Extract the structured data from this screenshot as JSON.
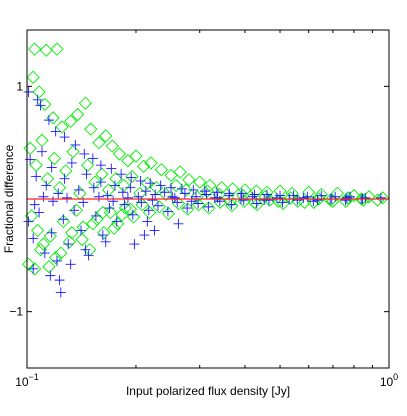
{
  "chart_data": {
    "type": "scatter",
    "xlabel": "Input polarized flux density [Jy]",
    "ylabel": "Fractional difference",
    "x_scale": "log",
    "xlim": [
      0.1,
      1.0
    ],
    "ylim": [
      -1.5,
      1.5
    ],
    "x_ticks": [
      {
        "value": 0.1,
        "base": "10",
        "exp": "−1"
      },
      {
        "value": 1.0,
        "base": "10",
        "exp": "0"
      }
    ],
    "y_ticks": [
      {
        "value": -1,
        "label": "−1"
      },
      {
        "value": 1,
        "label": "1"
      }
    ],
    "grid": false,
    "colors": {
      "diamond": "#00ee00",
      "plus": "#1a1aff",
      "fit": "#ff2020"
    },
    "reference_line": {
      "y": 0.0,
      "color": "#ff2020"
    },
    "series": [
      {
        "marker": "diamond",
        "color": "#00ee00",
        "points": [
          [
            0.105,
            1.33
          ],
          [
            0.113,
            1.32
          ],
          [
            0.121,
            1.33
          ],
          [
            0.104,
            1.08
          ],
          [
            0.108,
            0.95
          ],
          [
            0.112,
            0.84
          ],
          [
            0.118,
            0.72
          ],
          [
            0.125,
            0.64
          ],
          [
            0.132,
            0.69
          ],
          [
            0.138,
            0.75
          ],
          [
            0.145,
            0.85
          ],
          [
            0.15,
            0.62
          ],
          [
            0.158,
            0.5
          ],
          [
            0.165,
            0.56
          ],
          [
            0.172,
            0.47
          ],
          [
            0.18,
            0.4
          ],
          [
            0.19,
            0.34
          ],
          [
            0.2,
            0.38
          ],
          [
            0.21,
            0.29
          ],
          [
            0.22,
            0.32
          ],
          [
            0.235,
            0.26
          ],
          [
            0.25,
            0.21
          ],
          [
            0.265,
            0.24
          ],
          [
            0.28,
            0.17
          ],
          [
            0.3,
            0.15
          ],
          [
            0.32,
            0.12
          ],
          [
            0.345,
            0.1
          ],
          [
            0.37,
            0.09
          ],
          [
            0.4,
            0.08
          ],
          [
            0.43,
            0.07
          ],
          [
            0.46,
            0.06
          ],
          [
            0.5,
            0.07
          ],
          [
            0.54,
            0.05
          ],
          [
            0.6,
            0.06
          ],
          [
            0.65,
            0.04
          ],
          [
            0.72,
            0.05
          ],
          [
            0.8,
            0.03
          ],
          [
            0.88,
            0.02
          ],
          [
            0.96,
            0.01
          ],
          [
            0.102,
            0.45
          ],
          [
            0.106,
            0.3
          ],
          [
            0.11,
            0.52
          ],
          [
            0.114,
            0.18
          ],
          [
            0.119,
            0.36
          ],
          [
            0.123,
            0.1
          ],
          [
            0.128,
            0.25
          ],
          [
            0.134,
            0.42
          ],
          [
            0.14,
            0.05
          ],
          [
            0.147,
            0.3
          ],
          [
            0.154,
            0.15
          ],
          [
            0.161,
            0.22
          ],
          [
            0.168,
            0.08
          ],
          [
            0.176,
            0.18
          ],
          [
            0.185,
            0.12
          ],
          [
            0.195,
            0.2
          ],
          [
            0.205,
            0.05
          ],
          [
            0.215,
            0.14
          ],
          [
            0.228,
            0.1
          ],
          [
            0.242,
            0.04
          ],
          [
            0.258,
            0.12
          ],
          [
            0.275,
            0.08
          ],
          [
            0.295,
            0.02
          ],
          [
            0.315,
            0.07
          ],
          [
            0.34,
            0.04
          ],
          [
            0.365,
            -0.02
          ],
          [
            0.395,
            0.03
          ],
          [
            0.425,
            -0.03
          ],
          [
            0.455,
            0.02
          ],
          [
            0.495,
            -0.02
          ],
          [
            0.535,
            0.01
          ],
          [
            0.585,
            -0.03
          ],
          [
            0.64,
            0.0
          ],
          [
            0.7,
            -0.02
          ],
          [
            0.77,
            0.01
          ],
          [
            0.85,
            -0.01
          ],
          [
            0.103,
            -0.15
          ],
          [
            0.107,
            -0.28
          ],
          [
            0.111,
            -0.4
          ],
          [
            0.116,
            -0.33
          ],
          [
            0.12,
            -0.52
          ],
          [
            0.126,
            -0.2
          ],
          [
            0.131,
            -0.38
          ],
          [
            0.137,
            -0.1
          ],
          [
            0.143,
            -0.25
          ],
          [
            0.149,
            -0.45
          ],
          [
            0.156,
            -0.18
          ],
          [
            0.163,
            -0.3
          ],
          [
            0.17,
            -0.12
          ],
          [
            0.178,
            -0.22
          ],
          [
            0.187,
            -0.08
          ],
          [
            0.197,
            -0.16
          ],
          [
            0.208,
            -0.05
          ],
          [
            0.218,
            -0.12
          ],
          [
            0.232,
            -0.07
          ],
          [
            0.246,
            -0.13
          ],
          [
            0.262,
            -0.04
          ],
          [
            0.278,
            -0.09
          ],
          [
            0.298,
            -0.05
          ],
          [
            0.318,
            -0.08
          ],
          [
            0.342,
            -0.03
          ],
          [
            0.368,
            -0.06
          ],
          [
            0.398,
            -0.02
          ],
          [
            0.432,
            -0.05
          ],
          [
            0.468,
            -0.01
          ],
          [
            0.51,
            -0.04
          ],
          [
            0.56,
            -0.02
          ],
          [
            0.62,
            -0.03
          ],
          [
            0.69,
            -0.01
          ],
          [
            0.76,
            -0.02
          ],
          [
            0.84,
            0.0
          ],
          [
            0.93,
            -0.01
          ],
          [
            0.101,
            -0.58
          ],
          [
            0.105,
            -0.62
          ],
          [
            0.109,
            -0.45
          ],
          [
            0.115,
            -0.6
          ],
          [
            0.124,
            -0.48
          ],
          [
            0.133,
            -0.3
          ],
          [
            0.142,
            -0.36
          ],
          [
            0.152,
            -0.22
          ],
          [
            0.162,
            -0.12
          ],
          [
            0.174,
            -0.26
          ],
          [
            0.183,
            -0.14
          ],
          [
            0.193,
            -0.09
          ]
        ]
      },
      {
        "marker": "plus",
        "color": "#1a1aff",
        "points": [
          [
            0.101,
            0.95
          ],
          [
            0.107,
            0.88
          ],
          [
            0.109,
            0.83
          ],
          [
            0.115,
            0.7
          ],
          [
            0.12,
            0.6
          ],
          [
            0.127,
            0.55
          ],
          [
            0.136,
            0.48
          ],
          [
            0.144,
            0.4
          ],
          [
            0.152,
            0.36
          ],
          [
            0.16,
            0.3
          ],
          [
            0.171,
            0.27
          ],
          [
            0.182,
            0.22
          ],
          [
            0.194,
            0.19
          ],
          [
            0.206,
            0.16
          ],
          [
            0.219,
            0.14
          ],
          [
            0.234,
            0.12
          ],
          [
            0.25,
            0.1
          ],
          [
            0.268,
            0.09
          ],
          [
            0.288,
            0.08
          ],
          [
            0.31,
            0.07
          ],
          [
            0.335,
            0.06
          ],
          [
            0.362,
            0.05
          ],
          [
            0.392,
            0.05
          ],
          [
            0.425,
            0.04
          ],
          [
            0.46,
            0.04
          ],
          [
            0.5,
            0.03
          ],
          [
            0.545,
            0.03
          ],
          [
            0.595,
            0.02
          ],
          [
            0.65,
            0.03
          ],
          [
            0.71,
            0.02
          ],
          [
            0.78,
            0.02
          ],
          [
            0.86,
            0.01
          ],
          [
            0.95,
            0.01
          ],
          [
            0.102,
            0.35
          ],
          [
            0.106,
            0.2
          ],
          [
            0.11,
            0.42
          ],
          [
            0.113,
            0.12
          ],
          [
            0.117,
            0.28
          ],
          [
            0.122,
            0.05
          ],
          [
            0.127,
            0.18
          ],
          [
            0.133,
            0.32
          ],
          [
            0.139,
            0.08
          ],
          [
            0.146,
            0.22
          ],
          [
            0.153,
            0.1
          ],
          [
            0.16,
            0.15
          ],
          [
            0.167,
            0.03
          ],
          [
            0.175,
            0.12
          ],
          [
            0.184,
            0.06
          ],
          [
            0.193,
            0.1
          ],
          [
            0.203,
            0.02
          ],
          [
            0.213,
            0.07
          ],
          [
            0.226,
            0.04
          ],
          [
            0.24,
            0.06
          ],
          [
            0.256,
            0.01
          ],
          [
            0.273,
            0.05
          ],
          [
            0.293,
            0.02
          ],
          [
            0.313,
            0.04
          ],
          [
            0.336,
            0.01
          ],
          [
            0.362,
            0.03
          ],
          [
            0.39,
            0.0
          ],
          [
            0.42,
            0.02
          ],
          [
            0.452,
            -0.01
          ],
          [
            0.49,
            0.01
          ],
          [
            0.53,
            0.0
          ],
          [
            0.58,
            0.01
          ],
          [
            0.635,
            -0.01
          ],
          [
            0.695,
            0.0
          ],
          [
            0.765,
            0.01
          ],
          [
            0.845,
            0.0
          ],
          [
            0.101,
            -0.2
          ],
          [
            0.104,
            -0.35
          ],
          [
            0.108,
            -0.12
          ],
          [
            0.112,
            -0.48
          ],
          [
            0.117,
            -0.3
          ],
          [
            0.121,
            -0.55
          ],
          [
            0.126,
            -0.18
          ],
          [
            0.13,
            -0.4
          ],
          [
            0.135,
            -0.1
          ],
          [
            0.141,
            -0.28
          ],
          [
            0.148,
            -0.5
          ],
          [
            0.155,
            -0.15
          ],
          [
            0.162,
            -0.32
          ],
          [
            0.169,
            -0.08
          ],
          [
            0.177,
            -0.2
          ],
          [
            0.186,
            -0.05
          ],
          [
            0.196,
            -0.14
          ],
          [
            0.207,
            -0.03
          ],
          [
            0.217,
            -0.1
          ],
          [
            0.23,
            -0.06
          ],
          [
            0.245,
            -0.11
          ],
          [
            0.26,
            -0.03
          ],
          [
            0.277,
            -0.08
          ],
          [
            0.297,
            -0.04
          ],
          [
            0.317,
            -0.07
          ],
          [
            0.341,
            -0.02
          ],
          [
            0.367,
            -0.05
          ],
          [
            0.397,
            -0.01
          ],
          [
            0.431,
            -0.04
          ],
          [
            0.466,
            -0.01
          ],
          [
            0.508,
            -0.03
          ],
          [
            0.558,
            -0.01
          ],
          [
            0.618,
            -0.02
          ],
          [
            0.688,
            0.0
          ],
          [
            0.758,
            -0.01
          ],
          [
            0.838,
            0.0
          ],
          [
            0.104,
            -0.62
          ],
          [
            0.116,
            -0.68
          ],
          [
            0.123,
            -0.72
          ],
          [
            0.132,
            -0.58
          ],
          [
            0.124,
            -0.83
          ],
          [
            0.145,
            -0.45
          ],
          [
            0.165,
            -0.38
          ],
          [
            0.198,
            -0.4
          ],
          [
            0.211,
            -0.32
          ],
          [
            0.225,
            -0.28
          ],
          [
            0.262,
            -0.22
          ],
          [
            0.215,
            -0.2
          ],
          [
            0.105,
            -0.05
          ],
          [
            0.111,
            0.02
          ],
          [
            0.118,
            -0.02
          ],
          [
            0.129,
            0.01
          ],
          [
            0.143,
            -0.03
          ],
          [
            0.158,
            0.02
          ],
          [
            0.173,
            -0.02
          ],
          [
            0.19,
            0.01
          ],
          [
            0.222,
            -0.01
          ],
          [
            0.252,
            0.02
          ],
          [
            0.285,
            -0.02
          ],
          [
            0.33,
            0.01
          ]
        ]
      }
    ]
  }
}
